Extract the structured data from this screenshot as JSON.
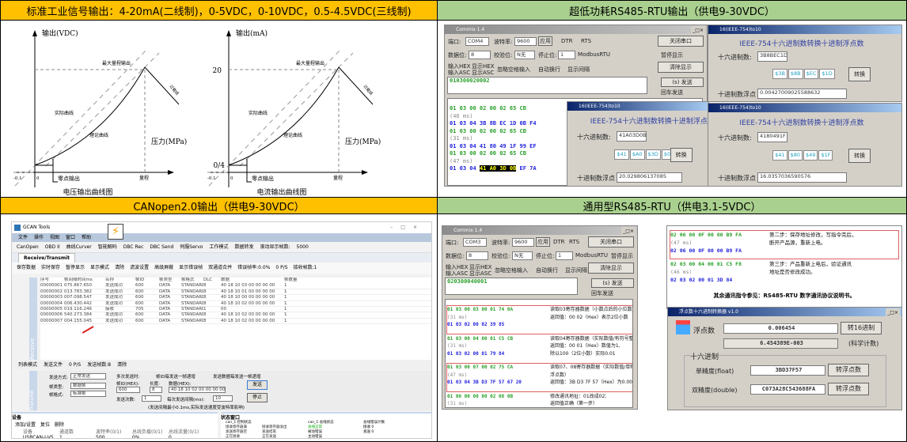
{
  "headers": {
    "analog": "标准工业信号输出：4-20mA(二线制)，0-5VDC，0-10VDC，0.5-4.5VDC(三线制)",
    "rs485_low": "超低功耗RS485-RTU输出（供电9-30VDC）",
    "canopen": "CANopen2.0输出（供电9-30VDC）",
    "rs485_general": "通用型RS485-RTU（供电3.1-5VDC）"
  },
  "colors": {
    "orange": "#FFC000",
    "green": "#A9D08E"
  },
  "diagrams": [
    {
      "y_axis": "输出(VDC)",
      "x_axis": "压力(MPa)",
      "max_label": "最大量程输出",
      "actual": "实际曲线",
      "theory": "理论曲线",
      "zero_out": "零点输出",
      "range": "量程",
      "neg": "-0.1",
      "zero": "0",
      "overload": "过载线",
      "y_tick_top": "",
      "y_tick_bottom": "",
      "caption": "电压输出曲线图"
    },
    {
      "y_axis": "输出(mA)",
      "x_axis": "压力(MPa)",
      "max_label": "最大量程输出",
      "actual": "实际曲线",
      "theory": "理论曲线",
      "zero_out": "零点输出",
      "range": "量程",
      "neg": "-0.1",
      "zero": "0",
      "overload": "过载线",
      "y_tick_top": "20",
      "y_tick_bottom": "0/4",
      "caption": "电流输出曲线图"
    }
  ],
  "comm1": {
    "title": "Commix 1.4",
    "port_label": "端口:",
    "port": "COM4",
    "baud_label": "波特率:",
    "baud": "9600",
    "apply": "应用",
    "dtr": "DTR",
    "rts": "RTS",
    "close_port": "关闭串口",
    "data_bits_label": "数据位:",
    "data_bits": "8",
    "parity_label": "校验位:",
    "parity": "N无",
    "stop_label": "停止位:",
    "stop": "1",
    "modbus": "ModbusRTU",
    "pause": "暂停显示",
    "in_hex": "输入HEX",
    "in_asc": "输入ASC",
    "show_hex": "显示HEX",
    "show_asc": "显示ASC",
    "ignore_space": "忽略空格输入",
    "auto_wrap": "自动换行",
    "show_interval": "显示间隔",
    "clear": "清除显示",
    "send_input": "010300020002",
    "send": "(s) 发送",
    "enter_send": "回车发送",
    "log": [
      {
        "t": "01 03 00 02 00 02 65 CB",
        "c": "g"
      },
      {
        "t": "(46 ms)",
        "c": "gr"
      },
      {
        "t": "01 03 04 3B 8B EC 1D 0B F4",
        "c": "b"
      },
      {
        "t": "01 03 00 02 00 02 65 CB",
        "c": "g"
      },
      {
        "t": "(31 ms)",
        "c": "gr"
      },
      {
        "t": "01 03 04 41 80 49 1F 99 EF",
        "c": "b"
      },
      {
        "t": "01 03 00 02 00 02 65 CB",
        "c": "g"
      },
      {
        "t": "(47 ms)",
        "c": "gr"
      }
    ],
    "last_prefix": "01 03 04 ",
    "last_highlight": "41 A0 3D 0B",
    "last_suffix": " EF 7A"
  },
  "ieee": [
    {
      "title": "16(IEEE-754)to10",
      "heading": "IEEE-754十六进制数转换十进制浮点数",
      "hex_label": "十六进制数:",
      "hex": "3B8BEC1D",
      "bytes": [
        "$3B",
        "$8B",
        "$EC",
        "$1D"
      ],
      "convert": "转换",
      "float_label": "十进制数浮点",
      "float": "0.00427009025588632"
    },
    {
      "title": "16(IEEE-754)to10",
      "heading": "IEEE-754十六进制数转换十进制浮点数",
      "hex_label": "十六进制数:",
      "hex": "41A03D0B",
      "bytes": [
        "$41",
        "$A0",
        "$3D",
        "$0B"
      ],
      "convert": "转换",
      "float_label": "十进制数浮点",
      "float": "20.029806137085"
    },
    {
      "title": "16(IEEE-754)to10",
      "heading": "IEEE-754十六进制数转换十进制浮点数",
      "hex_label": "十六进制数:",
      "hex": "4180491F",
      "bytes": [
        "$41",
        "$80",
        "$49",
        "$1F"
      ],
      "convert": "转换",
      "float_label": "十进制数浮点",
      "float": "16.0357036590576"
    }
  ],
  "gcan": {
    "title": "GCAN Tools",
    "menu": [
      "文件",
      "操作",
      "视图",
      "窗口",
      "帮助"
    ],
    "toolbar": [
      "CanOpen",
      "OBD II",
      "曲线Curver",
      "智能解码",
      "DBC Rec",
      "DBC Send",
      "伺服Servo",
      "工作模式",
      "数据转发",
      "滚动显示帧数:",
      "5000"
    ],
    "tab": "Receive/Transmit",
    "toolbar2": [
      "保存数据",
      "实时保存",
      "暂停显示",
      "显示模式",
      "清除",
      "滤波设置",
      "高级屏蔽",
      "显示错误帧",
      "双通道合并",
      "错误帧率:0.0%",
      "0 P/S",
      "接收帧数:1"
    ],
    "columns": [
      "序号",
      "帧间隔时间ms",
      "名称",
      "帧ID",
      "帧类型",
      "帧格式",
      "DLC",
      "数据",
      "帧数量"
    ],
    "rows": [
      [
        "00000001",
        "075.867.650",
        "发送成功",
        "600",
        "DATA",
        "STANDARD",
        "8",
        "40 18 10 03 00 00 00 00",
        "1"
      ],
      [
        "00000002",
        "013.783.382",
        "发送成功",
        "600",
        "DATA",
        "STANDARD",
        "8",
        "40 18 10 01 00 00 00 00",
        "1"
      ],
      [
        "00000003",
        "007.098.547",
        "发送成功",
        "600",
        "DATA",
        "STANDARD",
        "8",
        "40 18 10 00 00 00 00 00",
        "1"
      ],
      [
        "00000004",
        "006.430.442",
        "发送成功",
        "600",
        "DATA",
        "STANDARD",
        "8",
        "40 18 10 02 00 00 00 00",
        "1"
      ],
      [
        "00000005",
        "019.116.246",
        "接收",
        "705",
        "DATA",
        "STANDARD",
        "1",
        "00",
        "1"
      ],
      [
        "00000006",
        "540.273.384",
        "发送成功",
        "600",
        "DATA",
        "STANDARD",
        "8",
        "40 18 10 02 00 00 00 00",
        "1"
      ],
      [
        "00000007",
        "004.155.045",
        "发送成功",
        "600",
        "DATA",
        "STANDARD",
        "8",
        "40 18 10 02 00 00 00 00",
        "1"
      ]
    ],
    "side_receive": "Receive",
    "side_transmit": "Transmit",
    "toolbar3": [
      "列表模式",
      "发送文件",
      "0 P/S",
      "发送帧数:8",
      "清除"
    ],
    "send_mode_label": "发送方式:",
    "send_mode": "正常发送",
    "frame_type_label": "帧类型:",
    "frame_type": "数据帧",
    "frame_fmt_label": "帧格式:",
    "frame_fmt": "标准帧",
    "multi_label": "多次发送时:",
    "id_inc": "帧ID每发送一帧递增",
    "data_inc": "发送数据每发送一帧递增",
    "id_label": "帧ID(HEX):",
    "id": "600",
    "len_label": "长度:",
    "len": "8",
    "data_label": "数据(HEX):",
    "data": "40 18 10 02 00 00 00 00",
    "send_btn": "发送",
    "stop_btn": "停止",
    "count_label": "发送次数:",
    "count": "1",
    "interval_label": "每次发送间隔(ms):",
    "interval": "10",
    "hint": "(发送间隔最小0.1ms,实际发送速度受波特率影响)",
    "device_title": "设备",
    "add_device": "添加/设置",
    "reset": "复位",
    "delete": "删除",
    "dev_cols": [
      "设备",
      "通道数",
      "波特率(0/1)",
      "总线负载(0/1)",
      "总线流量(0/1)"
    ],
    "dev_row": [
      "USBCAN-I-V5",
      "1",
      "500",
      "0%",
      "0"
    ],
    "status_title": "状态窗口",
    "ctrl_title": "can_1 控制状态",
    "ctrl": [
      "接收寄存器满",
      "接收寄存器溢出",
      "发送寄存器空",
      "发送结束",
      "正在接收",
      "正在发送",
      "错误报警",
      "缓存区溢出",
      "总线数据错误",
      "总线仲裁错误"
    ],
    "bus_title": "can_1 总线状态",
    "bus": [
      "总线正常",
      "被动错误",
      "主动错误",
      "总线关闭"
    ],
    "err_title": "总线错误计数",
    "err": [
      "接收  0",
      "发送  0"
    ]
  },
  "comm2": {
    "title": "Commix 1.4",
    "port_label": "端口:",
    "port": "COM3",
    "baud_label": "波特率:",
    "baud": "9600",
    "apply": "应用",
    "dtr": "DTR",
    "rts": "RTS",
    "close_port": "关闭串口",
    "data_bits_label": "数据位:",
    "data_bits": "8",
    "parity_label": "校验位:",
    "parity": "N无",
    "stop_label": "停止位:",
    "stop": "1",
    "modbus": "ModbusRTU",
    "pause": "暂停显示",
    "in_hex": "输入HEX",
    "in_asc": "输入ASC",
    "show_hex": "显示HEX",
    "show_asc": "显示ASC",
    "ignore_space": "忽略空格输入",
    "auto_wrap": "自动换行",
    "show_interval": "显示间隔",
    "clear": "清除显示",
    "send_input": "020300040001",
    "send": "(s) 发送",
    "enter_send": "回车发送",
    "blocks": [
      {
        "lines": [
          [
            "01 03 00 03 00 01 74 0A",
            "g"
          ],
          [
            "(31 ms)",
            "gr"
          ],
          [
            "01 03 02 00 02 39 85",
            "b"
          ]
        ],
        "note": "读取03寄存器数据（小数点后的小位数）\n返回值：00 02（Hex）表示2位小数",
        "boxed": true
      },
      {
        "lines": [
          [
            "01 03 00 04 00 01 C5 CB",
            "g"
          ],
          [
            "(31 ms)",
            "gr"
          ],
          [
            "01 03 02 00 01 79 84",
            "b"
          ]
        ],
        "note": "读取04寄存器数据（实际数值/有符号整形）\n返回值：00 01（Hex）数值为1,\n除以100（2位小数）实际0.01",
        "boxed": false
      },
      {
        "lines": [
          [
            "01 03 00 07 00 02 75 CA",
            "g"
          ],
          [
            "(47 ms)",
            "gr"
          ],
          [
            "01 03 04 3B D3 7F 57 67 20",
            "b"
          ]
        ],
        "note": "读取07、08寄存器数据（实际数值/单精度\n浮点数）\n返回值：3B D3 7F 57（Hex）为0.006454",
        "boxed": true
      },
      {
        "lines": [
          [
            "01 06 00 00 00 02 08 0B",
            "g"
          ],
          [
            "(31 ms)",
            "gr"
          ],
          [
            "01 06 00 00 00 02 08 0B",
            "b"
          ]
        ],
        "note": "修改通讯地址：01改成02;\n返回值正确（第一步）",
        "boxed": false
      }
    ]
  },
  "log2": {
    "blocks": [
      {
        "lines": [
          [
            "02 06 00 0F 00 00 B9 FA",
            "g"
          ],
          [
            "(47 ms)",
            "gr"
          ],
          [
            "02 06 00 0F 00 00 B9 FA",
            "b"
          ]
        ],
        "note": "第二步：保存地址修改，写指令完后，\n断开产品源，重新上电。",
        "boxed": true
      },
      {
        "lines": [
          [
            "02 03 00 04 00 01 C5 F8",
            "g"
          ],
          [
            "(46 ms)",
            "gr"
          ],
          [
            "02 03 02 00 01 3D 84",
            "b"
          ]
        ],
        "note": "第三步：产品重新上电后，验证通讯\n地址是否修改成功。",
        "boxed": false
      }
    ],
    "footer": "其余通讯指令参见：RS485-RTU 数字通讯协议说明书。"
  },
  "floatconv": {
    "title": "浮点数十六进制转换器 v1.0",
    "float_label": "浮点数",
    "float": "0.006454",
    "to_hex": "转16进制",
    "sci": "6.454389E-003",
    "sci_label": "(科学计数)",
    "group": "十六进制",
    "single_label": "单精度(float)",
    "single": "3BD37F57",
    "double_label": "双精度(double)",
    "double": "C073A28C543688FA",
    "to_float": "转浮点数"
  }
}
